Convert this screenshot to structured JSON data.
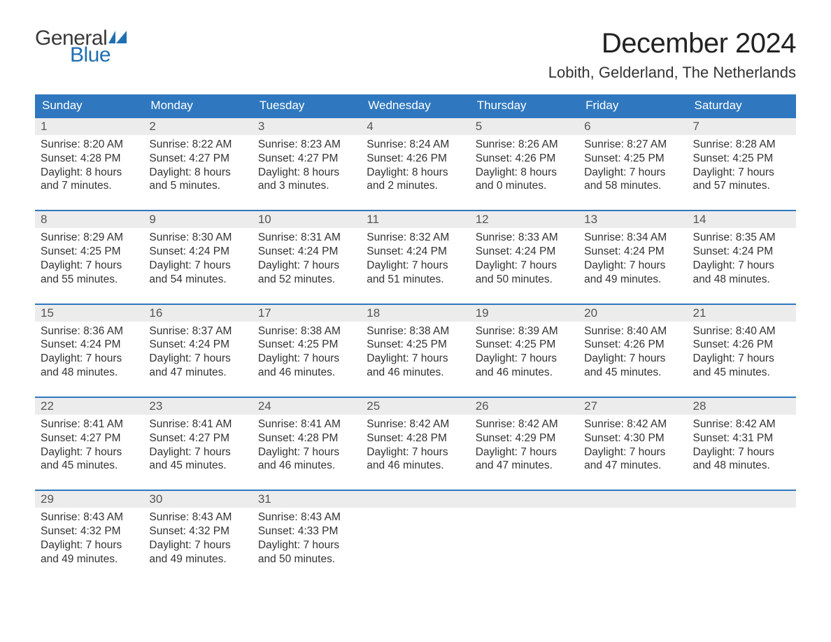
{
  "logo": {
    "general": "General",
    "blue": "Blue",
    "icon_color": "#1f6fb2"
  },
  "title": "December 2024",
  "location": "Lobith, Gelderland, The Netherlands",
  "styling": {
    "header_bg": "#2f78bf",
    "header_text": "#ffffff",
    "daynum_bg": "#ececec",
    "daynum_text": "#555555",
    "body_text": "#333333",
    "week_border": "#2f78bf",
    "page_bg": "#ffffff",
    "title_fontsize": 40,
    "location_fontsize": 22,
    "dayheader_fontsize": 17,
    "daybody_fontsize": 15.5
  },
  "day_names": [
    "Sunday",
    "Monday",
    "Tuesday",
    "Wednesday",
    "Thursday",
    "Friday",
    "Saturday"
  ],
  "sunrise_label": "Sunrise",
  "sunset_label": "Sunset",
  "daylight_label": "Daylight",
  "weeks": [
    [
      {
        "n": 1,
        "sunrise": "8:20 AM",
        "sunset": "4:28 PM",
        "dl_h": 8,
        "dl_m": 7
      },
      {
        "n": 2,
        "sunrise": "8:22 AM",
        "sunset": "4:27 PM",
        "dl_h": 8,
        "dl_m": 5
      },
      {
        "n": 3,
        "sunrise": "8:23 AM",
        "sunset": "4:27 PM",
        "dl_h": 8,
        "dl_m": 3
      },
      {
        "n": 4,
        "sunrise": "8:24 AM",
        "sunset": "4:26 PM",
        "dl_h": 8,
        "dl_m": 2
      },
      {
        "n": 5,
        "sunrise": "8:26 AM",
        "sunset": "4:26 PM",
        "dl_h": 8,
        "dl_m": 0
      },
      {
        "n": 6,
        "sunrise": "8:27 AM",
        "sunset": "4:25 PM",
        "dl_h": 7,
        "dl_m": 58
      },
      {
        "n": 7,
        "sunrise": "8:28 AM",
        "sunset": "4:25 PM",
        "dl_h": 7,
        "dl_m": 57
      }
    ],
    [
      {
        "n": 8,
        "sunrise": "8:29 AM",
        "sunset": "4:25 PM",
        "dl_h": 7,
        "dl_m": 55
      },
      {
        "n": 9,
        "sunrise": "8:30 AM",
        "sunset": "4:24 PM",
        "dl_h": 7,
        "dl_m": 54
      },
      {
        "n": 10,
        "sunrise": "8:31 AM",
        "sunset": "4:24 PM",
        "dl_h": 7,
        "dl_m": 52
      },
      {
        "n": 11,
        "sunrise": "8:32 AM",
        "sunset": "4:24 PM",
        "dl_h": 7,
        "dl_m": 51
      },
      {
        "n": 12,
        "sunrise": "8:33 AM",
        "sunset": "4:24 PM",
        "dl_h": 7,
        "dl_m": 50
      },
      {
        "n": 13,
        "sunrise": "8:34 AM",
        "sunset": "4:24 PM",
        "dl_h": 7,
        "dl_m": 49
      },
      {
        "n": 14,
        "sunrise": "8:35 AM",
        "sunset": "4:24 PM",
        "dl_h": 7,
        "dl_m": 48
      }
    ],
    [
      {
        "n": 15,
        "sunrise": "8:36 AM",
        "sunset": "4:24 PM",
        "dl_h": 7,
        "dl_m": 48
      },
      {
        "n": 16,
        "sunrise": "8:37 AM",
        "sunset": "4:24 PM",
        "dl_h": 7,
        "dl_m": 47
      },
      {
        "n": 17,
        "sunrise": "8:38 AM",
        "sunset": "4:25 PM",
        "dl_h": 7,
        "dl_m": 46
      },
      {
        "n": 18,
        "sunrise": "8:38 AM",
        "sunset": "4:25 PM",
        "dl_h": 7,
        "dl_m": 46
      },
      {
        "n": 19,
        "sunrise": "8:39 AM",
        "sunset": "4:25 PM",
        "dl_h": 7,
        "dl_m": 46
      },
      {
        "n": 20,
        "sunrise": "8:40 AM",
        "sunset": "4:26 PM",
        "dl_h": 7,
        "dl_m": 45
      },
      {
        "n": 21,
        "sunrise": "8:40 AM",
        "sunset": "4:26 PM",
        "dl_h": 7,
        "dl_m": 45
      }
    ],
    [
      {
        "n": 22,
        "sunrise": "8:41 AM",
        "sunset": "4:27 PM",
        "dl_h": 7,
        "dl_m": 45
      },
      {
        "n": 23,
        "sunrise": "8:41 AM",
        "sunset": "4:27 PM",
        "dl_h": 7,
        "dl_m": 45
      },
      {
        "n": 24,
        "sunrise": "8:41 AM",
        "sunset": "4:28 PM",
        "dl_h": 7,
        "dl_m": 46
      },
      {
        "n": 25,
        "sunrise": "8:42 AM",
        "sunset": "4:28 PM",
        "dl_h": 7,
        "dl_m": 46
      },
      {
        "n": 26,
        "sunrise": "8:42 AM",
        "sunset": "4:29 PM",
        "dl_h": 7,
        "dl_m": 47
      },
      {
        "n": 27,
        "sunrise": "8:42 AM",
        "sunset": "4:30 PM",
        "dl_h": 7,
        "dl_m": 47
      },
      {
        "n": 28,
        "sunrise": "8:42 AM",
        "sunset": "4:31 PM",
        "dl_h": 7,
        "dl_m": 48
      }
    ],
    [
      {
        "n": 29,
        "sunrise": "8:43 AM",
        "sunset": "4:32 PM",
        "dl_h": 7,
        "dl_m": 49
      },
      {
        "n": 30,
        "sunrise": "8:43 AM",
        "sunset": "4:32 PM",
        "dl_h": 7,
        "dl_m": 49
      },
      {
        "n": 31,
        "sunrise": "8:43 AM",
        "sunset": "4:33 PM",
        "dl_h": 7,
        "dl_m": 50
      },
      null,
      null,
      null,
      null
    ]
  ]
}
